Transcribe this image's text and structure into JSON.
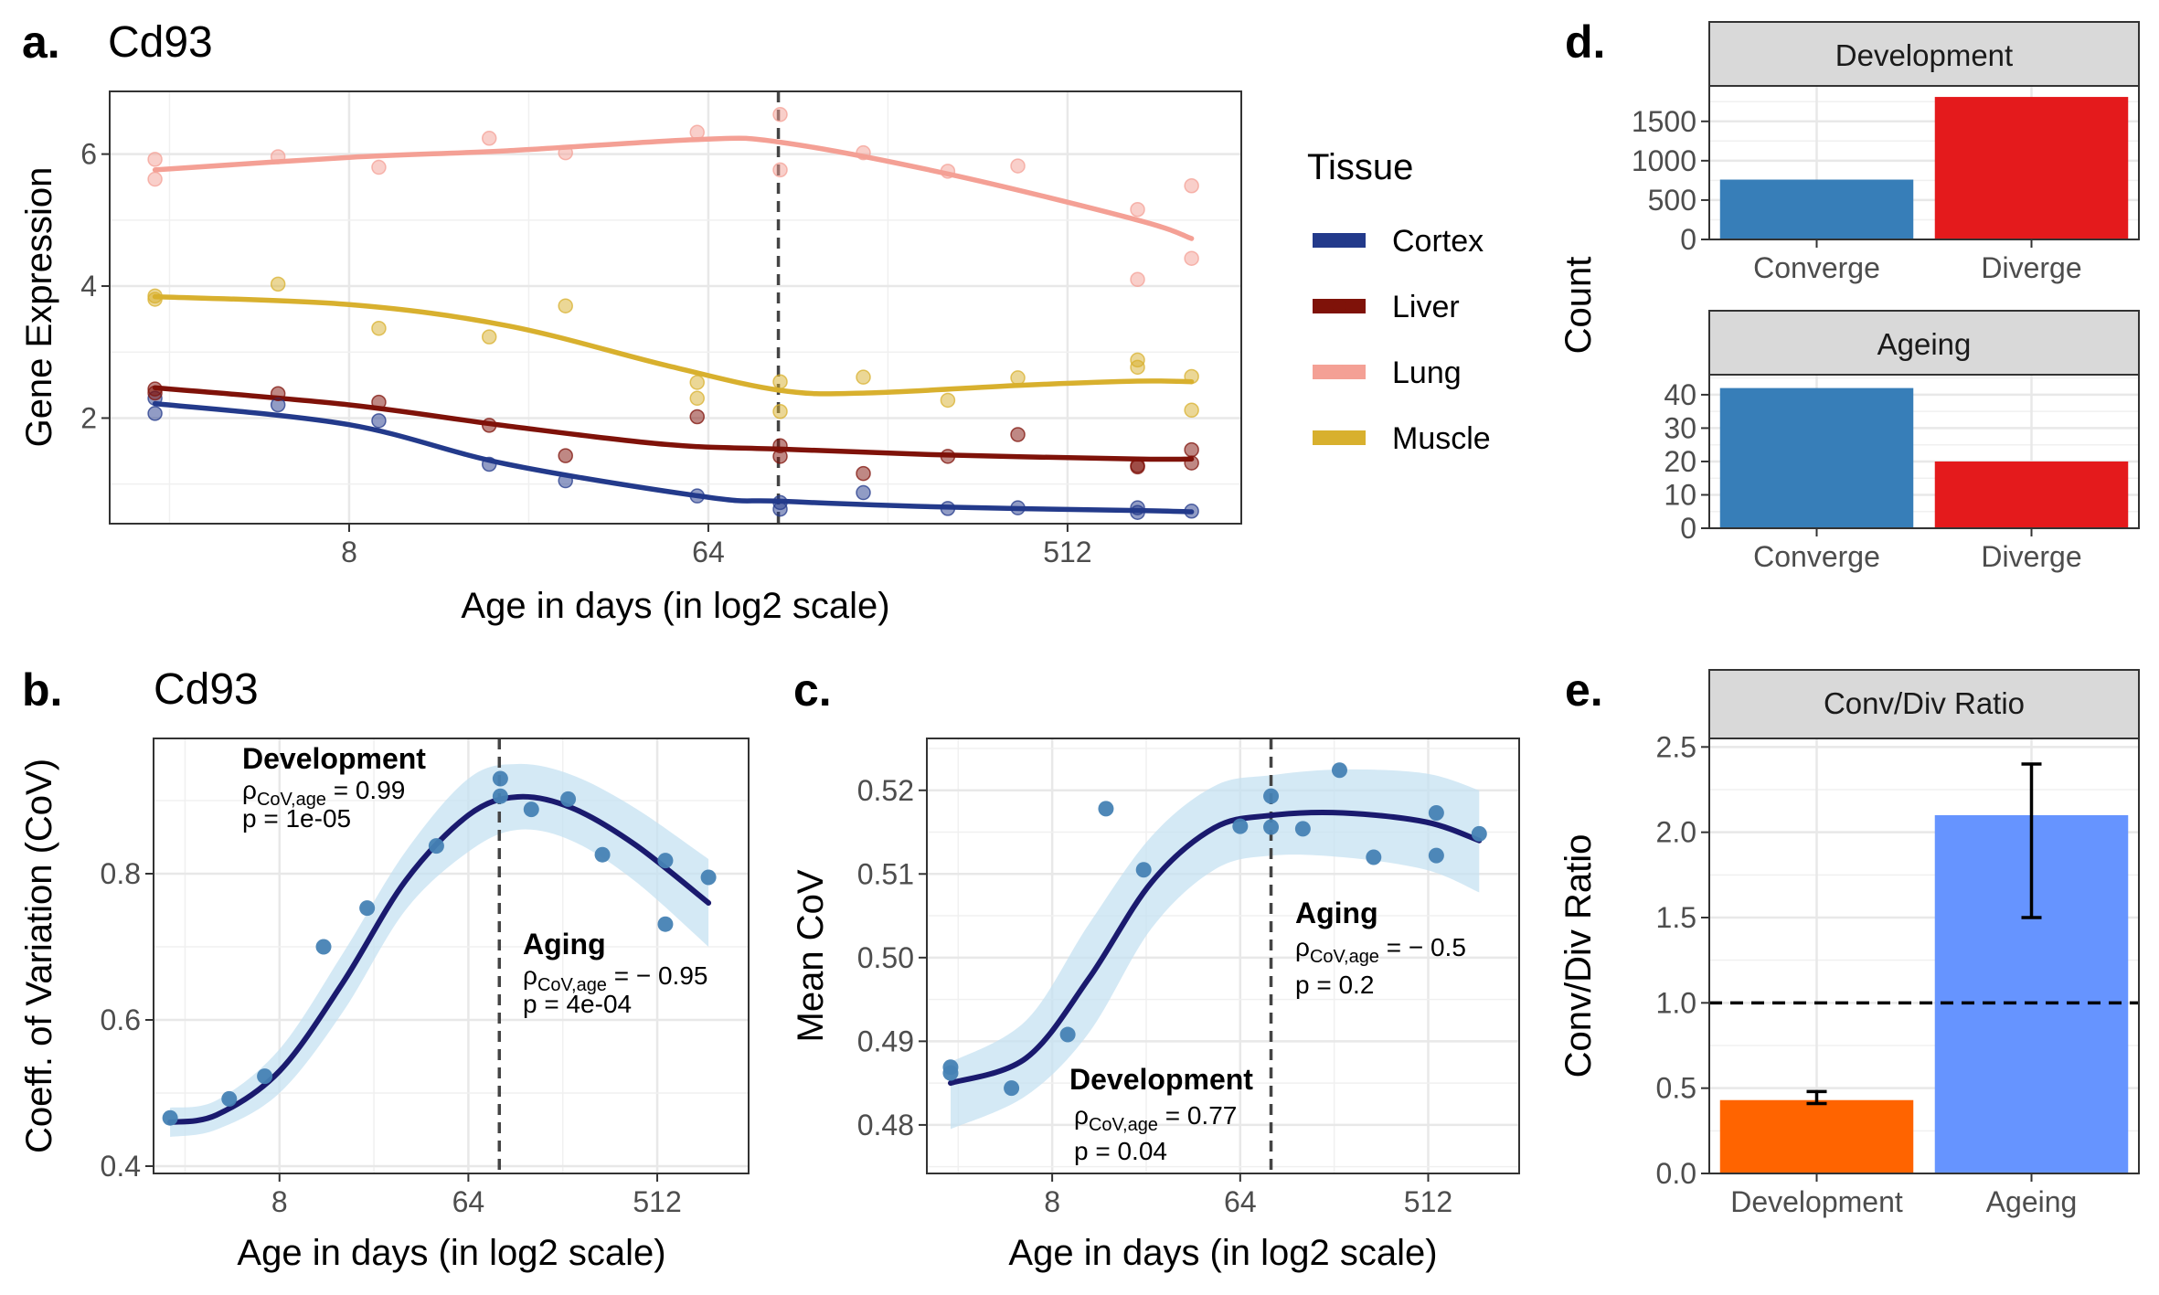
{
  "panels": {
    "a": {
      "letter": "a.",
      "title": "Cd93",
      "xlabel": "Age in days (in log2 scale)",
      "ylabel": "Gene Expression",
      "legend_title": "Tissue",
      "xticks": [
        8,
        64,
        512
      ],
      "yticks": [
        2,
        4,
        6
      ],
      "xlim": [
        2.0,
        1400
      ],
      "ylim": [
        0.4,
        6.95
      ],
      "vline": 96
    },
    "b": {
      "letter": "b.",
      "title": "Cd93",
      "xlabel": "Age in days (in log2 scale)",
      "ylabel": "Coeff. of Variation (CoV)",
      "xticks": [
        8,
        64,
        512
      ],
      "yticks": [
        0.4,
        0.6,
        0.8
      ],
      "xlim": [
        2.0,
        1400
      ],
      "ylim": [
        0.39,
        0.985
      ],
      "vline": 90,
      "annotations": {
        "development": {
          "heading": "Development",
          "rho_sub": "CoV,age",
          "rho_value": " = 0.99",
          "p": "p = 1e-05"
        },
        "aging": {
          "heading": "Aging",
          "rho_sub": "CoV,age",
          "rho_value": " = − 0.95",
          "p": "p = 4e-04"
        }
      }
    },
    "c": {
      "letter": "c.",
      "title": "",
      "xlabel": "Age in days (in log2 scale)",
      "ylabel": "Mean CoV",
      "xticks": [
        8,
        64,
        512
      ],
      "yticks": [
        0.48,
        0.49,
        0.5,
        0.51,
        0.52
      ],
      "xlim": [
        2.0,
        1400
      ],
      "ylim": [
        0.4742,
        0.5262
      ],
      "vline": 90,
      "annotations": {
        "development": {
          "heading": "Development",
          "rho_sub": "CoV,age",
          "rho_value": " = 0.77",
          "p": "p = 0.04"
        },
        "aging": {
          "heading": "Aging",
          "rho_sub": "CoV,age",
          "rho_value": " = − 0.5",
          "p": "p = 0.2"
        }
      }
    },
    "d": {
      "letter": "d.",
      "ylabel": "Count",
      "facets": [
        {
          "strip": "Development",
          "yticks": [
            0,
            500,
            1000,
            1500
          ],
          "ylim": [
            0,
            1950
          ]
        },
        {
          "strip": "Ageing",
          "yticks": [
            0,
            10,
            20,
            30,
            40
          ],
          "ylim": [
            0,
            46
          ]
        }
      ]
    },
    "e": {
      "letter": "e.",
      "strip": "Conv/Div Ratio",
      "ylabel": "Conv/Div Ratio",
      "yticks": [
        0.0,
        0.5,
        1.0,
        1.5,
        2.0,
        2.5
      ],
      "ylim": [
        0,
        2.55
      ],
      "hline": 1.0
    }
  },
  "colors": {
    "Cortex": "#233a8b",
    "Liver": "#7f1209",
    "Lung": "#f4a095",
    "Muscle": "#d8b02e",
    "Converge": "#377eb8",
    "Diverge": "#e41a1c",
    "Development": "#ff6400",
    "Ageing": "#6694ff",
    "fit_line": "#1a1a6e",
    "ci_band": "#c6e2f2",
    "point": "#4682b4"
  },
  "chart_data": [
    {
      "panel": "a",
      "type": "scatter",
      "title": "Cd93",
      "xlabel": "Age in days (in log2 scale)",
      "ylabel": "Gene Expression",
      "xscale": "log2",
      "legend_placement": "right",
      "series": [
        {
          "name": "Cortex",
          "points": [
            [
              2.6,
              2.07
            ],
            [
              2.6,
              2.3
            ],
            [
              5.3,
              2.2
            ],
            [
              9.5,
              1.96
            ],
            [
              18,
              1.3
            ],
            [
              28,
              1.05
            ],
            [
              60,
              0.82
            ],
            [
              97,
              0.72
            ],
            [
              97,
              0.62
            ],
            [
              157,
              0.87
            ],
            [
              256,
              0.63
            ],
            [
              384,
              0.64
            ],
            [
              768,
              0.64
            ],
            [
              768,
              0.57
            ],
            [
              1050,
              0.59
            ]
          ],
          "fit": [
            [
              2.6,
              2.22
            ],
            [
              8,
              1.9
            ],
            [
              20,
              1.3
            ],
            [
              64,
              0.8
            ],
            [
              97,
              0.74
            ],
            [
              256,
              0.65
            ],
            [
              768,
              0.6
            ],
            [
              1050,
              0.58
            ]
          ]
        },
        {
          "name": "Liver",
          "points": [
            [
              2.6,
              2.44
            ],
            [
              2.6,
              2.38
            ],
            [
              5.3,
              2.37
            ],
            [
              9.5,
              2.24
            ],
            [
              18,
              1.89
            ],
            [
              28,
              1.43
            ],
            [
              60,
              2.02
            ],
            [
              97,
              1.58
            ],
            [
              97,
              1.42
            ],
            [
              157,
              1.16
            ],
            [
              256,
              1.42
            ],
            [
              384,
              1.75
            ],
            [
              768,
              1.26
            ],
            [
              768,
              1.28
            ],
            [
              1050,
              1.52
            ],
            [
              1050,
              1.32
            ]
          ],
          "fit": [
            [
              2.6,
              2.46
            ],
            [
              8,
              2.2
            ],
            [
              20,
              1.88
            ],
            [
              50,
              1.6
            ],
            [
              97,
              1.53
            ],
            [
              256,
              1.44
            ],
            [
              768,
              1.38
            ],
            [
              1050,
              1.38
            ]
          ]
        },
        {
          "name": "Lung",
          "points": [
            [
              2.6,
              5.92
            ],
            [
              2.6,
              5.62
            ],
            [
              5.3,
              5.96
            ],
            [
              9.5,
              5.8
            ],
            [
              18,
              6.24
            ],
            [
              28,
              6.02
            ],
            [
              60,
              6.33
            ],
            [
              97,
              6.6
            ],
            [
              97,
              5.76
            ],
            [
              157,
              6.02
            ],
            [
              256,
              5.74
            ],
            [
              384,
              5.82
            ],
            [
              768,
              5.16
            ],
            [
              768,
              4.1
            ],
            [
              1050,
              5.52
            ],
            [
              1050,
              4.42
            ]
          ],
          "fit": [
            [
              2.6,
              5.76
            ],
            [
              8,
              5.95
            ],
            [
              20,
              6.05
            ],
            [
              60,
              6.22
            ],
            [
              97,
              6.18
            ],
            [
              256,
              5.7
            ],
            [
              768,
              5.0
            ],
            [
              1050,
              4.72
            ]
          ]
        },
        {
          "name": "Muscle",
          "points": [
            [
              2.6,
              3.85
            ],
            [
              2.6,
              3.8
            ],
            [
              5.3,
              4.03
            ],
            [
              9.5,
              3.36
            ],
            [
              18,
              3.23
            ],
            [
              28,
              3.7
            ],
            [
              60,
              2.3
            ],
            [
              60,
              2.54
            ],
            [
              97,
              2.55
            ],
            [
              97,
              2.1
            ],
            [
              157,
              2.62
            ],
            [
              256,
              2.27
            ],
            [
              384,
              2.61
            ],
            [
              768,
              2.88
            ],
            [
              768,
              2.77
            ],
            [
              1050,
              2.63
            ],
            [
              1050,
              2.12
            ]
          ],
          "fit": [
            [
              2.6,
              3.84
            ],
            [
              8,
              3.72
            ],
            [
              20,
              3.4
            ],
            [
              50,
              2.8
            ],
            [
              97,
              2.42
            ],
            [
              160,
              2.38
            ],
            [
              400,
              2.5
            ],
            [
              768,
              2.56
            ],
            [
              1050,
              2.55
            ]
          ]
        }
      ],
      "vline": 96
    },
    {
      "panel": "b",
      "type": "scatter",
      "title": "Cd93",
      "xlabel": "Age in days (in log2 scale)",
      "ylabel": "Coeff. of Variation (CoV)",
      "xscale": "log2",
      "points": [
        [
          2.4,
          0.466
        ],
        [
          4.6,
          0.492
        ],
        [
          6.8,
          0.523
        ],
        [
          13,
          0.7
        ],
        [
          21,
          0.753
        ],
        [
          45,
          0.838
        ],
        [
          91,
          0.93
        ],
        [
          91,
          0.906
        ],
        [
          128,
          0.888
        ],
        [
          192,
          0.902
        ],
        [
          280,
          0.826
        ],
        [
          560,
          0.818
        ],
        [
          560,
          0.731
        ],
        [
          900,
          0.795
        ]
      ],
      "fit": [
        [
          2.4,
          0.46
        ],
        [
          4,
          0.47
        ],
        [
          8,
          0.53
        ],
        [
          16,
          0.65
        ],
        [
          32,
          0.79
        ],
        [
          64,
          0.88
        ],
        [
          110,
          0.905
        ],
        [
          200,
          0.89
        ],
        [
          400,
          0.84
        ],
        [
          900,
          0.76
        ]
      ],
      "ci_upper": [
        [
          2.4,
          0.48
        ],
        [
          4,
          0.49
        ],
        [
          8,
          0.56
        ],
        [
          16,
          0.69
        ],
        [
          32,
          0.83
        ],
        [
          64,
          0.93
        ],
        [
          110,
          0.95
        ],
        [
          200,
          0.935
        ],
        [
          400,
          0.89
        ],
        [
          900,
          0.82
        ]
      ],
      "ci_lower": [
        [
          2.4,
          0.44
        ],
        [
          4,
          0.45
        ],
        [
          8,
          0.5
        ],
        [
          16,
          0.61
        ],
        [
          32,
          0.75
        ],
        [
          64,
          0.83
        ],
        [
          110,
          0.86
        ],
        [
          200,
          0.845
        ],
        [
          400,
          0.79
        ],
        [
          900,
          0.7
        ]
      ],
      "vline": 90
    },
    {
      "panel": "c",
      "type": "scatter",
      "xlabel": "Age in days (in log2 scale)",
      "ylabel": "Mean CoV",
      "xscale": "log2",
      "points": [
        [
          2.6,
          0.4869
        ],
        [
          2.6,
          0.4862
        ],
        [
          5.1,
          0.4844
        ],
        [
          9.5,
          0.4908
        ],
        [
          14.5,
          0.5178
        ],
        [
          22,
          0.5105
        ],
        [
          64,
          0.5157
        ],
        [
          90,
          0.5193
        ],
        [
          90,
          0.5156
        ],
        [
          128,
          0.5154
        ],
        [
          192,
          0.5224
        ],
        [
          280,
          0.512
        ],
        [
          560,
          0.5122
        ],
        [
          560,
          0.5173
        ],
        [
          900,
          0.5148
        ]
      ],
      "fit": [
        [
          2.6,
          0.485
        ],
        [
          6,
          0.488
        ],
        [
          12,
          0.4975
        ],
        [
          24,
          0.509
        ],
        [
          48,
          0.5155
        ],
        [
          90,
          0.517
        ],
        [
          200,
          0.5173
        ],
        [
          500,
          0.5162
        ],
        [
          900,
          0.514
        ]
      ],
      "ci_upper": [
        [
          2.6,
          0.4875
        ],
        [
          6,
          0.4925
        ],
        [
          12,
          0.504
        ],
        [
          24,
          0.5145
        ],
        [
          48,
          0.5205
        ],
        [
          90,
          0.5218
        ],
        [
          200,
          0.5225
        ],
        [
          500,
          0.522
        ],
        [
          900,
          0.52
        ]
      ],
      "ci_lower": [
        [
          2.6,
          0.4795
        ],
        [
          6,
          0.4835
        ],
        [
          12,
          0.491
        ],
        [
          24,
          0.5035
        ],
        [
          48,
          0.5105
        ],
        [
          90,
          0.5122
        ],
        [
          200,
          0.512
        ],
        [
          500,
          0.5105
        ],
        [
          900,
          0.5078
        ]
      ],
      "vline": 90
    },
    {
      "panel": "d",
      "type": "bar",
      "ylabel": "Count",
      "categories": [
        "Converge",
        "Diverge"
      ],
      "facets": [
        {
          "name": "Development",
          "values": [
            760,
            1810
          ]
        },
        {
          "name": "Ageing",
          "values": [
            42,
            20
          ]
        }
      ]
    },
    {
      "panel": "e",
      "type": "bar",
      "ylabel": "Conv/Div Ratio",
      "categories": [
        "Development",
        "Ageing"
      ],
      "values": [
        0.43,
        2.1
      ],
      "error_low": [
        0.41,
        1.5
      ],
      "error_high": [
        0.48,
        2.4
      ],
      "hline": 1.0
    }
  ]
}
